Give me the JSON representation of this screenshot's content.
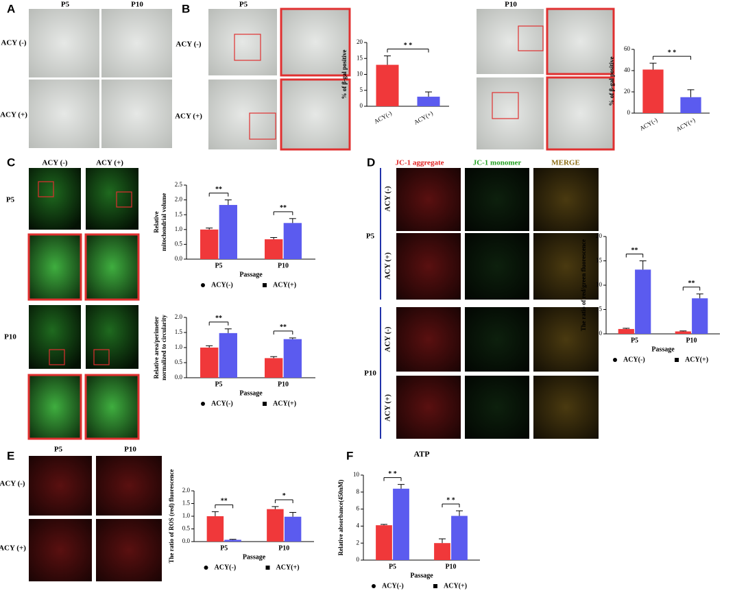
{
  "panel_letters": [
    "A",
    "B",
    "C",
    "D",
    "E",
    "F"
  ],
  "panel_labels": [
    "P5",
    "P10",
    "ACY (-)",
    "ACY (+)",
    "P5",
    "ACY (-)",
    "ACY (+)",
    "P10",
    "ACY (-)",
    "ACY (+)",
    "P5",
    "P10",
    "JC-1 aggregate",
    "JC-1 monomer",
    "MERGE",
    "P5",
    "P10",
    "ACY (-)",
    "ACY (+)",
    "ACY (-)",
    "ACY (+)",
    "P5",
    "P10",
    "ACY (-)",
    "ACY (+)"
  ],
  "chart_data": [
    {
      "type": "bar",
      "categories": [
        "ACY(-)",
        "ACY(+)"
      ],
      "values": [
        13,
        3
      ],
      "errors": [
        2.8,
        1.5
      ],
      "colors": [
        "#f0383a",
        "#5b5bef"
      ],
      "ylabel": [
        "% of β-gal positive"
      ],
      "ylim": [
        0,
        20
      ],
      "yticks": [
        0,
        5,
        10,
        15,
        20
      ],
      "annotations": [
        "* *"
      ]
    },
    {
      "type": "bar",
      "categories": [
        "ACY(-)",
        "ACY(+)"
      ],
      "values": [
        41,
        15
      ],
      "errors": [
        6,
        7
      ],
      "colors": [
        "#f0383a",
        "#5b5bef"
      ],
      "ylabel": [
        "% of β-gal positive"
      ],
      "ylim": [
        0,
        60
      ],
      "yticks": [
        0,
        20,
        40,
        60
      ],
      "annotations": [
        "* *"
      ]
    },
    {
      "type": "bar",
      "categories": [
        "P5",
        "P10"
      ],
      "xlabel": "Passage",
      "ylabel": [
        "Relative",
        "mitochondrial volume"
      ],
      "series": [
        {
          "name": "ACY(-)",
          "color": "#f0383a",
          "values": [
            1.0,
            0.67
          ],
          "errors": [
            0.05,
            0.06
          ]
        },
        {
          "name": "ACY(+)",
          "color": "#5b5bef",
          "values": [
            1.83,
            1.22
          ],
          "errors": [
            0.17,
            0.15
          ]
        }
      ],
      "ylim": [
        0,
        2.5
      ],
      "yticks": [
        {
          "value": 0,
          "label": "0.0"
        },
        0.5,
        {
          "value": 1,
          "label": "1.0"
        },
        1.5,
        {
          "value": 2,
          "label": "2.0"
        },
        2.5
      ],
      "annotations": [
        "**",
        "**"
      ]
    },
    {
      "type": "bar",
      "categories": [
        "P5",
        "P10"
      ],
      "xlabel": "Passage",
      "ylabel": [
        "Relative area/perimeter",
        "normalized to circularity"
      ],
      "series": [
        {
          "name": "ACY(-)",
          "color": "#f0383a",
          "values": [
            1.0,
            0.65
          ],
          "errors": [
            0.06,
            0.05
          ]
        },
        {
          "name": "ACY(+)",
          "color": "#5b5bef",
          "values": [
            1.48,
            1.28
          ],
          "errors": [
            0.14,
            0.04
          ]
        }
      ],
      "ylim": [
        0,
        2
      ],
      "yticks": [
        {
          "value": 0,
          "label": "0.0"
        },
        0.5,
        {
          "value": 1,
          "label": "1.0"
        },
        1.5,
        {
          "value": 2,
          "label": "2.0"
        }
      ],
      "annotations": [
        "**",
        "**"
      ]
    },
    {
      "type": "bar",
      "categories": [
        "P5",
        "P10"
      ],
      "xlabel": "Passage",
      "ylabel": [
        "The ratio of red/green fluorescence"
      ],
      "series": [
        {
          "name": "ACY(-)",
          "color": "#f0383a",
          "values": [
            1.0,
            0.5
          ],
          "errors": [
            0.15,
            0.1
          ]
        },
        {
          "name": "ACY(+)",
          "color": "#5b5bef",
          "values": [
            13.2,
            7.3
          ],
          "errors": [
            1.8,
            0.9
          ]
        }
      ],
      "ylim": [
        0,
        20
      ],
      "yticks": [
        0,
        5,
        10,
        15,
        20
      ],
      "annotations": [
        "**",
        "**"
      ]
    },
    {
      "type": "bar",
      "categories": [
        "P5",
        "P10"
      ],
      "xlabel": "Passage",
      "ylabel": [
        "The ratio of ROS (red) fluorescence"
      ],
      "series": [
        {
          "name": "ACY(-)",
          "color": "#f0383a",
          "values": [
            1.0,
            1.28
          ],
          "errors": [
            0.18,
            0.1
          ]
        },
        {
          "name": "ACY(+)",
          "color": "#5b5bef",
          "values": [
            0.07,
            0.98
          ],
          "errors": [
            0.02,
            0.17
          ]
        }
      ],
      "ylim": [
        0,
        2
      ],
      "yticks": [
        {
          "value": 0,
          "label": "0.0"
        },
        0.5,
        {
          "value": 1,
          "label": "1.0"
        },
        1.5,
        {
          "value": 2,
          "label": "2.0"
        }
      ],
      "annotations": [
        "**",
        "*"
      ]
    },
    {
      "type": "bar",
      "title": "ATP",
      "categories": [
        "P5",
        "P10"
      ],
      "xlabel": "Passage",
      "ylabel": [
        "Relative absorbance(450nM)"
      ],
      "series": [
        {
          "name": "ACY(-)",
          "color": "#f0383a",
          "values": [
            4.1,
            2.0
          ],
          "errors": [
            0.1,
            0.5
          ]
        },
        {
          "name": "ACY(+)",
          "color": "#5b5bef",
          "values": [
            8.4,
            5.2
          ],
          "errors": [
            0.5,
            0.6
          ]
        }
      ],
      "ylim": [
        0,
        10
      ],
      "yticks": [
        0,
        2,
        4,
        6,
        8,
        10
      ],
      "annotations": [
        "* *",
        "* *"
      ]
    }
  ]
}
